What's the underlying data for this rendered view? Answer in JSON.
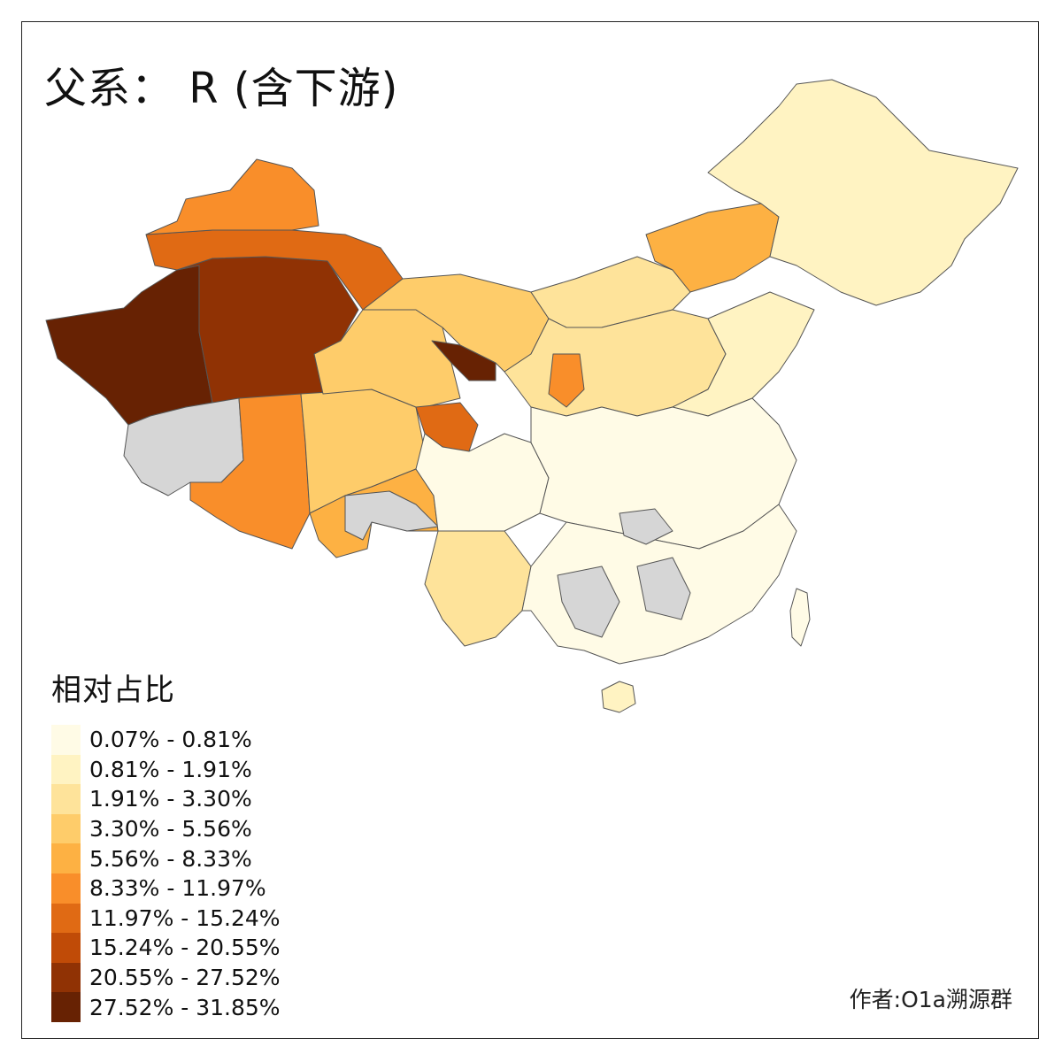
{
  "title": "父系： R (含下游)",
  "legend": {
    "title": "相对占比",
    "classes": [
      {
        "label": "0.07% - 0.81%",
        "color": "#fffbe6"
      },
      {
        "label": "0.81% - 1.91%",
        "color": "#fff3c2"
      },
      {
        "label": "1.91% - 3.30%",
        "color": "#fee39a"
      },
      {
        "label": "3.30% - 5.56%",
        "color": "#fecc6a"
      },
      {
        "label": "5.56% - 8.33%",
        "color": "#fdb143"
      },
      {
        "label": "8.33% - 11.97%",
        "color": "#f98e2a"
      },
      {
        "label": "11.97% - 15.24%",
        "color": "#e06a14"
      },
      {
        "label": "15.24% - 20.55%",
        "color": "#c04b07"
      },
      {
        "label": "20.55% - 27.52%",
        "color": "#903204"
      },
      {
        "label": "27.52% - 31.85%",
        "color": "#672203"
      }
    ]
  },
  "no_data_color": "#d6d6d6",
  "credit": "作者:O1a溯源群"
}
